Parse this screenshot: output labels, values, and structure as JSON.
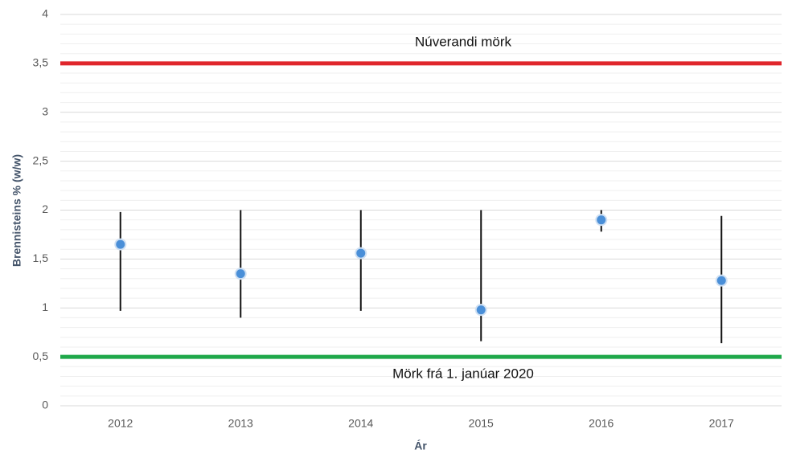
{
  "chart_data": {
    "type": "range-dot",
    "x_label": "Ár",
    "y_label": "Brennisteins % (w/w)",
    "categories": [
      "2012",
      "2013",
      "2014",
      "2015",
      "2016",
      "2017"
    ],
    "values": [
      1.65,
      1.35,
      1.56,
      0.98,
      1.9,
      1.28
    ],
    "low": [
      0.97,
      0.9,
      0.97,
      0.66,
      1.78,
      0.64
    ],
    "high": [
      1.98,
      2.0,
      2.0,
      2.0,
      2.0,
      1.94
    ],
    "color": "#4a8fd8",
    "ylim": [
      0,
      4
    ],
    "yticks": [
      0,
      {
        "value": 0.5,
        "label": "0,5"
      },
      1,
      {
        "value": 1.5,
        "label": "1,5"
      },
      2,
      {
        "value": 2.5,
        "label": "2,5"
      },
      3,
      {
        "value": 3.5,
        "label": "3,5"
      },
      4
    ],
    "grid": true,
    "reference_lines": [
      {
        "value": 3.5,
        "label": "Núverandi mörk",
        "color": "#e0262c",
        "label_position": "above"
      },
      {
        "value": 0.5,
        "label": "Mörk frá 1. janúar 2020",
        "color": "#1fa84a",
        "label_position": "below"
      }
    ]
  }
}
